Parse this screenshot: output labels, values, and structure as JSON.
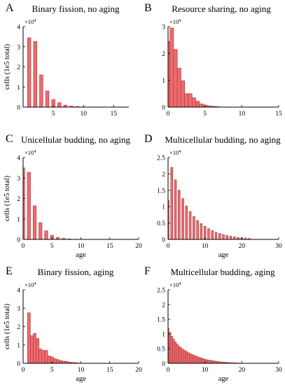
{
  "chart_data": [
    {
      "type": "bar",
      "panel_label": "A",
      "title": "Binary fission, no aging",
      "xlabel": "",
      "ylabel": "cells (1e5 total)",
      "multiplier_base": "×10",
      "multiplier_exp": "4",
      "xlim": [
        0,
        17.5
      ],
      "ylim": [
        0,
        4
      ],
      "xticks": [
        5,
        10,
        15
      ],
      "yticks": [
        0,
        1,
        2,
        3,
        4
      ],
      "grid": false,
      "bar_width": 0.55,
      "x": [
        1,
        2,
        3,
        4,
        5,
        6,
        7,
        8,
        9,
        10,
        11,
        12
      ],
      "values": [
        3.44,
        3.26,
        1.6,
        0.8,
        0.38,
        0.22,
        0.1,
        0.05,
        0.03,
        0.015,
        0.008,
        0.004
      ]
    },
    {
      "type": "bar",
      "panel_label": "B",
      "title": "Resource sharing, no aging",
      "xlabel": "",
      "ylabel": "",
      "multiplier_base": "×10",
      "multiplier_exp": "4",
      "xlim": [
        0,
        15
      ],
      "ylim": [
        0,
        3
      ],
      "xticks": [
        0,
        5,
        10,
        15
      ],
      "yticks": [
        0,
        1,
        2,
        3
      ],
      "grid": false,
      "bar_width": 0.5,
      "x": [
        0,
        0.5,
        1,
        1.5,
        2,
        2.5,
        3,
        3.5,
        4,
        4.5,
        5,
        5.5,
        6,
        6.5,
        7,
        7.5
      ],
      "values": [
        2.45,
        2.95,
        2.15,
        1.45,
        0.98,
        0.5,
        0.5,
        0.35,
        0.22,
        0.12,
        0.08,
        0.05,
        0.03,
        0.02,
        0.01,
        0.005
      ]
    },
    {
      "type": "bar",
      "panel_label": "C",
      "title": "Unicellular budding, no aging",
      "xlabel": "age",
      "ylabel": "cells (1e5 total)",
      "multiplier_base": "×10",
      "multiplier_exp": "4",
      "xlim": [
        0,
        20
      ],
      "ylim": [
        0,
        4
      ],
      "xticks": [
        0,
        5,
        10,
        15,
        20
      ],
      "yticks": [
        0,
        1,
        2,
        3,
        4
      ],
      "grid": false,
      "bar_width": 0.55,
      "x": [
        0,
        1,
        2,
        3,
        4,
        5,
        6,
        7,
        8,
        9,
        10,
        11
      ],
      "values": [
        3.5,
        3.28,
        1.64,
        0.82,
        0.42,
        0.2,
        0.1,
        0.05,
        0.025,
        0.012,
        0.006,
        0.003
      ]
    },
    {
      "type": "bar",
      "panel_label": "D",
      "title": "Multicellular budding, no aging",
      "xlabel": "age",
      "ylabel": "",
      "multiplier_base": "×10",
      "multiplier_exp": "4",
      "xlim": [
        0,
        30
      ],
      "ylim": [
        0,
        2.5
      ],
      "xticks": [
        0,
        10,
        20,
        30
      ],
      "yticks": [
        0,
        0.5,
        1,
        1.5,
        2,
        2.5
      ],
      "grid": false,
      "bar_width": 0.55,
      "x": [
        0,
        1,
        2,
        3,
        4,
        5,
        6,
        7,
        8,
        9,
        10,
        11,
        12,
        13,
        14,
        15,
        16,
        17,
        18,
        19,
        20,
        21,
        22
      ],
      "values": [
        1.2,
        2.2,
        1.82,
        1.5,
        1.25,
        1.02,
        0.85,
        0.7,
        0.58,
        0.48,
        0.4,
        0.33,
        0.27,
        0.22,
        0.18,
        0.15,
        0.12,
        0.1,
        0.08,
        0.06,
        0.05,
        0.04,
        0.03
      ]
    },
    {
      "type": "bar",
      "panel_label": "E",
      "title": "Binary fission, aging",
      "xlabel": "age",
      "ylabel": "cells (1e5 total)",
      "multiplier_base": "×10",
      "multiplier_exp": "4",
      "xlim": [
        0,
        20
      ],
      "ylim": [
        0,
        4
      ],
      "xticks": [
        0,
        5,
        10,
        15,
        20
      ],
      "yticks": [
        0,
        1,
        2,
        3,
        4
      ],
      "grid": false,
      "bar_width": 0.5,
      "x": [
        1,
        1.5,
        2,
        2.5,
        3,
        3.5,
        4,
        4.5,
        5,
        5.5,
        6,
        6.5,
        7,
        7.5,
        8,
        8.5,
        9,
        9.5,
        10
      ],
      "values": [
        2.75,
        1.5,
        1.62,
        1.35,
        0.78,
        0.7,
        0.7,
        0.4,
        0.35,
        0.25,
        0.2,
        0.15,
        0.12,
        0.1,
        0.06,
        0.05,
        0.04,
        0.02,
        0.01
      ]
    },
    {
      "type": "bar",
      "panel_label": "F",
      "title": "Multicellular budding, aging",
      "xlabel": "age",
      "ylabel": "",
      "multiplier_base": "×10",
      "multiplier_exp": "4",
      "xlim": [
        0,
        30
      ],
      "ylim": [
        0,
        2.5
      ],
      "xticks": [
        0,
        10,
        20,
        30
      ],
      "yticks": [
        0,
        0.5,
        1,
        1.5,
        2,
        2.5
      ],
      "grid": false,
      "bar_width": 0.5,
      "x": [
        0,
        0.5,
        1,
        1.5,
        2,
        2.5,
        3,
        3.5,
        4,
        4.5,
        5,
        5.5,
        6,
        6.5,
        7,
        7.5,
        8,
        8.5,
        9,
        9.5,
        10,
        10.5,
        11,
        11.5,
        12,
        12.5,
        13,
        13.5,
        14,
        14.5,
        15,
        15.5,
        16,
        16.5,
        17,
        17.5,
        18,
        18.5,
        19,
        19.5,
        20
      ],
      "values": [
        1.2,
        1.05,
        0.92,
        0.82,
        0.72,
        0.65,
        0.58,
        0.53,
        0.48,
        0.44,
        0.4,
        0.36,
        0.33,
        0.3,
        0.27,
        0.25,
        0.22,
        0.2,
        0.18,
        0.16,
        0.14,
        0.12,
        0.11,
        0.1,
        0.09,
        0.08,
        0.07,
        0.06,
        0.05,
        0.045,
        0.04,
        0.035,
        0.03,
        0.025,
        0.02,
        0.018,
        0.015,
        0.012,
        0.01,
        0.008,
        0.006
      ]
    }
  ]
}
